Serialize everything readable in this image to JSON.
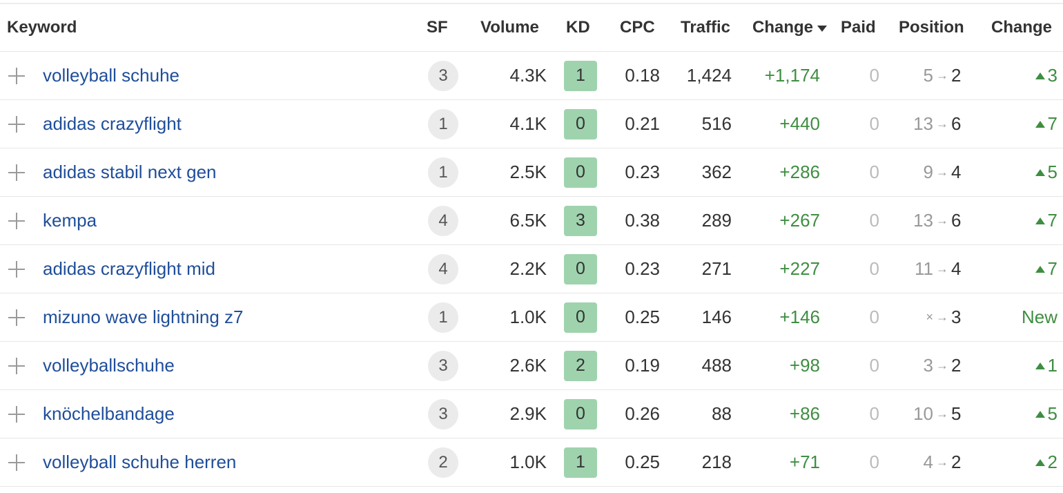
{
  "header": {
    "keyword": "Keyword",
    "sf": "SF",
    "volume": "Volume",
    "kd": "KD",
    "cpc": "CPC",
    "traffic": "Traffic",
    "change": "Change",
    "paid": "Paid",
    "position": "Position",
    "position_change": "Change"
  },
  "rows": [
    {
      "keyword": "volleyball schuhe",
      "sf": "3",
      "volume": "4.3K",
      "kd": "1",
      "cpc": "0.18",
      "traffic": "1,424",
      "change": "+1,174",
      "paid": "0",
      "pos_old": "5",
      "pos_new": "2",
      "pos_change": "3"
    },
    {
      "keyword": "adidas crazyflight",
      "sf": "1",
      "volume": "4.1K",
      "kd": "0",
      "cpc": "0.21",
      "traffic": "516",
      "change": "+440",
      "paid": "0",
      "pos_old": "13",
      "pos_new": "6",
      "pos_change": "7"
    },
    {
      "keyword": "adidas stabil next gen",
      "sf": "1",
      "volume": "2.5K",
      "kd": "0",
      "cpc": "0.23",
      "traffic": "362",
      "change": "+286",
      "paid": "0",
      "pos_old": "9",
      "pos_new": "4",
      "pos_change": "5"
    },
    {
      "keyword": "kempa",
      "sf": "4",
      "volume": "6.5K",
      "kd": "3",
      "cpc": "0.38",
      "traffic": "289",
      "change": "+267",
      "paid": "0",
      "pos_old": "13",
      "pos_new": "6",
      "pos_change": "7"
    },
    {
      "keyword": "adidas crazyflight mid",
      "sf": "4",
      "volume": "2.2K",
      "kd": "0",
      "cpc": "0.23",
      "traffic": "271",
      "change": "+227",
      "paid": "0",
      "pos_old": "11",
      "pos_new": "4",
      "pos_change": "7"
    },
    {
      "keyword": "mizuno wave lightning z7",
      "sf": "1",
      "volume": "1.0K",
      "kd": "0",
      "cpc": "0.25",
      "traffic": "146",
      "change": "+146",
      "paid": "0",
      "pos_old": "×",
      "pos_new": "3",
      "pos_change": "New"
    },
    {
      "keyword": "volleyballschuhe",
      "sf": "3",
      "volume": "2.6K",
      "kd": "2",
      "cpc": "0.19",
      "traffic": "488",
      "change": "+98",
      "paid": "0",
      "pos_old": "3",
      "pos_new": "2",
      "pos_change": "1"
    },
    {
      "keyword": "knöchelbandage",
      "sf": "3",
      "volume": "2.9K",
      "kd": "0",
      "cpc": "0.26",
      "traffic": "88",
      "change": "+86",
      "paid": "0",
      "pos_old": "10",
      "pos_new": "5",
      "pos_change": "5"
    },
    {
      "keyword": "volleyball schuhe herren",
      "sf": "2",
      "volume": "1.0K",
      "kd": "1",
      "cpc": "0.25",
      "traffic": "218",
      "change": "+71",
      "paid": "0",
      "pos_old": "4",
      "pos_new": "2",
      "pos_change": "2"
    }
  ],
  "icons": {
    "row_action": "plus-icon",
    "sort": "caret-down-icon",
    "position_arrow": "arrow-right-icon",
    "position_up": "triangle-up-icon"
  },
  "colors": {
    "link": "#1f4e9a",
    "positive": "#3e8e41",
    "kd_badge": "#9fd3ae",
    "sf_badge": "#ebebeb"
  }
}
